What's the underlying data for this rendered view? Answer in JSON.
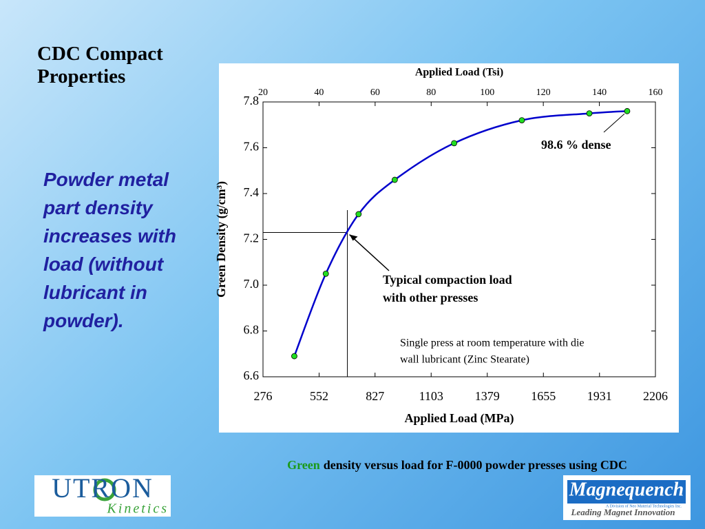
{
  "slide": {
    "title": "CDC Compact Properties",
    "body": "Powder metal part density increases with load (without lubricant in powder).",
    "caption_highlight": "Green",
    "caption_rest": "density versus load for F-0000 powder presses using CDC",
    "logo_left": {
      "name": "UTRON",
      "sub": "Kinetics"
    },
    "logo_right": {
      "name": "Magnequench",
      "sub": "A Division of Neo Material Technologies Inc.",
      "tagline": "Leading Magnet Innovation"
    }
  },
  "chart_data": {
    "type": "line",
    "xlabel": "Applied Load (MPa)",
    "x2label": "Applied Load (Tsi)",
    "ylabel": "Green Density (g/cm³)",
    "x": [
      430,
      585,
      746,
      924,
      1216,
      1549,
      1881,
      2067
    ],
    "series": [
      {
        "name": "Green density",
        "color": "#0000cc",
        "marker_color": "#22dd22",
        "values": [
          6.69,
          7.05,
          7.31,
          7.46,
          7.62,
          7.72,
          7.75,
          7.76
        ]
      }
    ],
    "xlim": [
      276,
      2206
    ],
    "xticks": [
      276,
      552,
      827,
      1103,
      1379,
      1655,
      1931,
      2206
    ],
    "x2lim": [
      20,
      160
    ],
    "x2ticks": [
      20,
      40,
      60,
      80,
      100,
      120,
      140,
      160
    ],
    "ylim": [
      6.6,
      7.8
    ],
    "yticks": [
      {
        "value": 6.6,
        "label": "6.6"
      },
      {
        "value": 6.8,
        "label": "6.8"
      },
      {
        "value": 7.0,
        "label": "7.0"
      },
      {
        "value": 7.2,
        "label": "7.2"
      },
      {
        "value": 7.4,
        "label": "7.4"
      },
      {
        "value": 7.6,
        "label": "7.6"
      },
      {
        "value": 7.8,
        "label": "7.8"
      }
    ],
    "reference_point": {
      "x": 691,
      "y": 7.23
    },
    "annotations": [
      {
        "lines": [
          "98.6 % dense"
        ]
      },
      {
        "lines": [
          "Typical compaction load",
          "with other presses"
        ]
      },
      {
        "lines": [
          "Single press at room temperature with die",
          "wall lubricant (Zinc Stearate)"
        ]
      }
    ]
  }
}
